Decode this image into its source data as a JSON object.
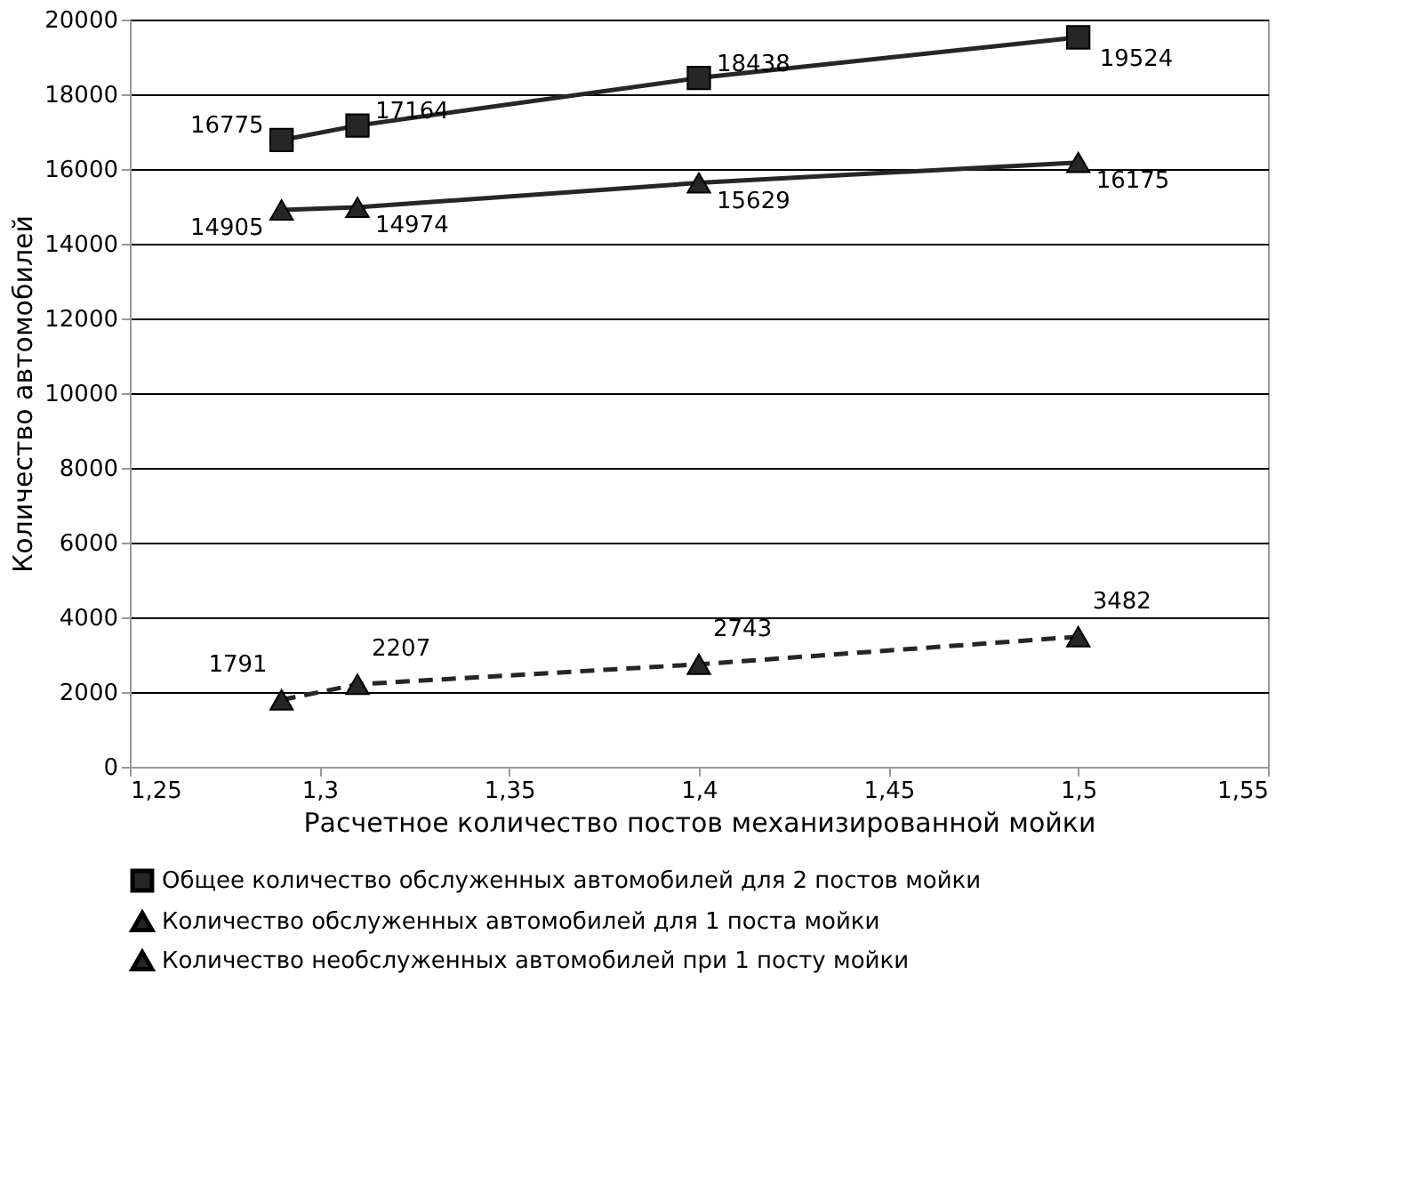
{
  "chart_data": {
    "type": "line",
    "xlabel": "Расчетное количество постов  механизированной мойки",
    "ylabel": "Количество автомобилей",
    "x": [
      1.29,
      1.31,
      1.4,
      1.5
    ],
    "series": [
      {
        "name": "Общее количество обслуженных автомобилей для 2 постов мойки",
        "color": "#262626",
        "values": [
          16775,
          17164,
          18438,
          19524
        ],
        "marker": "square",
        "line_style": "solid"
      },
      {
        "name": "Количество обслуженных автомобилей для 1 поста мойки",
        "color": "#262626",
        "values": [
          14905,
          14974,
          15629,
          16175
        ],
        "marker": "triangle",
        "line_style": "solid"
      },
      {
        "name": "Количество необслуженных автомобилей при 1 посту мойки",
        "color": "#262626",
        "values": [
          1791,
          2207,
          2743,
          3482
        ],
        "marker": "triangle",
        "line_style": "dashed"
      }
    ],
    "xlim": [
      1.25,
      1.55
    ],
    "xticks": [
      {
        "value": 1.25,
        "label": "1,25"
      },
      {
        "value": 1.3,
        "label": "1,3"
      },
      {
        "value": 1.35,
        "label": "1,35"
      },
      {
        "value": 1.4,
        "label": "1,4"
      },
      {
        "value": 1.45,
        "label": "1,45"
      },
      {
        "value": 1.5,
        "label": "1,5"
      },
      {
        "value": 1.55,
        "label": "1,55"
      }
    ],
    "ylim": [
      0,
      20000
    ],
    "yticks": [
      0,
      2000,
      4000,
      6000,
      8000,
      10000,
      12000,
      14000,
      16000,
      18000,
      20000
    ],
    "grid": "y",
    "legend": "bottom",
    "data_labels": true
  }
}
